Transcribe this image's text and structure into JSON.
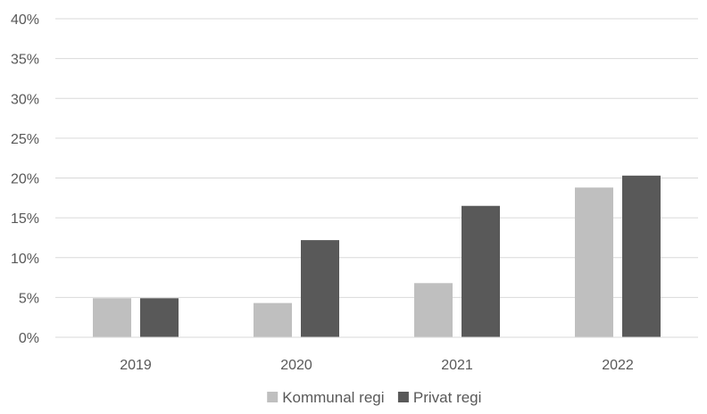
{
  "chart_data": {
    "type": "bar",
    "title": "",
    "xlabel": "",
    "ylabel": "",
    "categories": [
      "2019",
      "2020",
      "2021",
      "2022"
    ],
    "series": [
      {
        "name": "Kommunal regi",
        "color": "#bfbfbf",
        "values": [
          0.049,
          0.043,
          0.068,
          0.188
        ]
      },
      {
        "name": "Privat regi",
        "color": "#595959",
        "values": [
          0.049,
          0.122,
          0.165,
          0.203
        ]
      }
    ],
    "ylim": [
      0,
      0.4
    ],
    "yticks": [
      0,
      0.05,
      0.1,
      0.15,
      0.2,
      0.25,
      0.3,
      0.35,
      0.4
    ],
    "ytick_labels": [
      "0%",
      "5%",
      "10%",
      "15%",
      "20%",
      "25%",
      "30%",
      "35%",
      "40%"
    ],
    "grid": true,
    "legend_position": "bottom"
  }
}
